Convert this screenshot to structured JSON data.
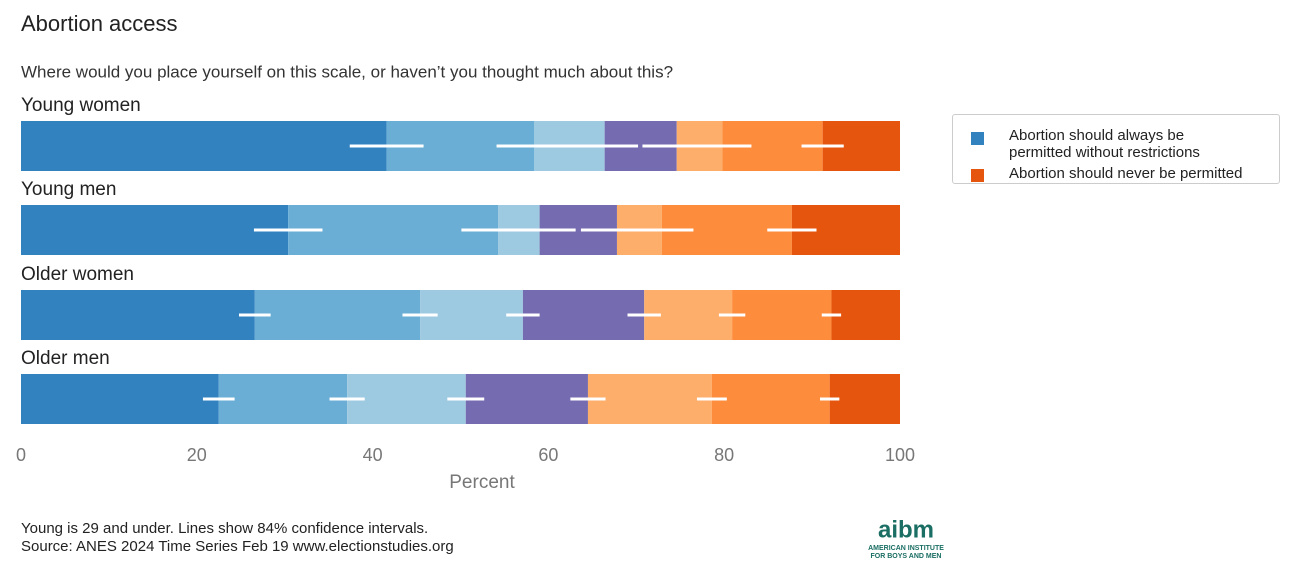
{
  "chart_data": {
    "type": "stacked-bar-horizontal",
    "title": "Abortion access",
    "subtitle": "Where would you place yourself on this scale, or haven’t you thought much about this?",
    "categories": [
      "Young women",
      "Young men",
      "Older women",
      "Older men"
    ],
    "series": [
      {
        "name": "Abortion should always be permitted without restrictions",
        "color": "#3282c0",
        "values": [
          41.6,
          30.4,
          26.6,
          22.5
        ],
        "errors": [
          4.2,
          3.9,
          1.8,
          1.8
        ]
      },
      {
        "color": "#6aaed6",
        "values": [
          16.8,
          23.9,
          18.8,
          14.6
        ],
        "errors": [
          4.3,
          4.2,
          2.0,
          2.0
        ]
      },
      {
        "color": "#9ecae1",
        "values": [
          8.0,
          4.7,
          11.7,
          13.5
        ],
        "errors": [
          3.8,
          4.1,
          1.9,
          2.1
        ]
      },
      {
        "color": "#756bb1",
        "values": [
          8.2,
          8.8,
          13.8,
          13.9
        ],
        "errors": [
          3.9,
          4.1,
          1.9,
          2.0
        ]
      },
      {
        "color": "#fdae6b",
        "values": [
          5.2,
          5.1,
          10.0,
          14.1
        ],
        "errors": [
          3.3,
          3.6,
          1.5,
          1.7
        ]
      },
      {
        "color": "#fd8d3c",
        "values": [
          11.4,
          14.8,
          11.3,
          13.4
        ],
        "errors": [
          2.4,
          2.8,
          1.1,
          1.1
        ]
      },
      {
        "name": "Abortion should never be permitted",
        "color": "#e6550d",
        "values": [
          8.8,
          12.3,
          7.8,
          8.0
        ]
      }
    ],
    "xlabel": "Percent",
    "xlim": [
      0,
      100
    ],
    "xticks": [
      0,
      20,
      40,
      60,
      80,
      100
    ],
    "legend": "top-right",
    "notes": [
      "Young is 29 and under. Lines show 84% confidence intervals.",
      "Source: ANES 2024 Time Series Feb 19 www.electionstudies.org"
    ],
    "logo": {
      "name": "aibm",
      "line1": "AMERICAN INSTITUTE",
      "line2": "FOR BOYS AND MEN"
    }
  }
}
